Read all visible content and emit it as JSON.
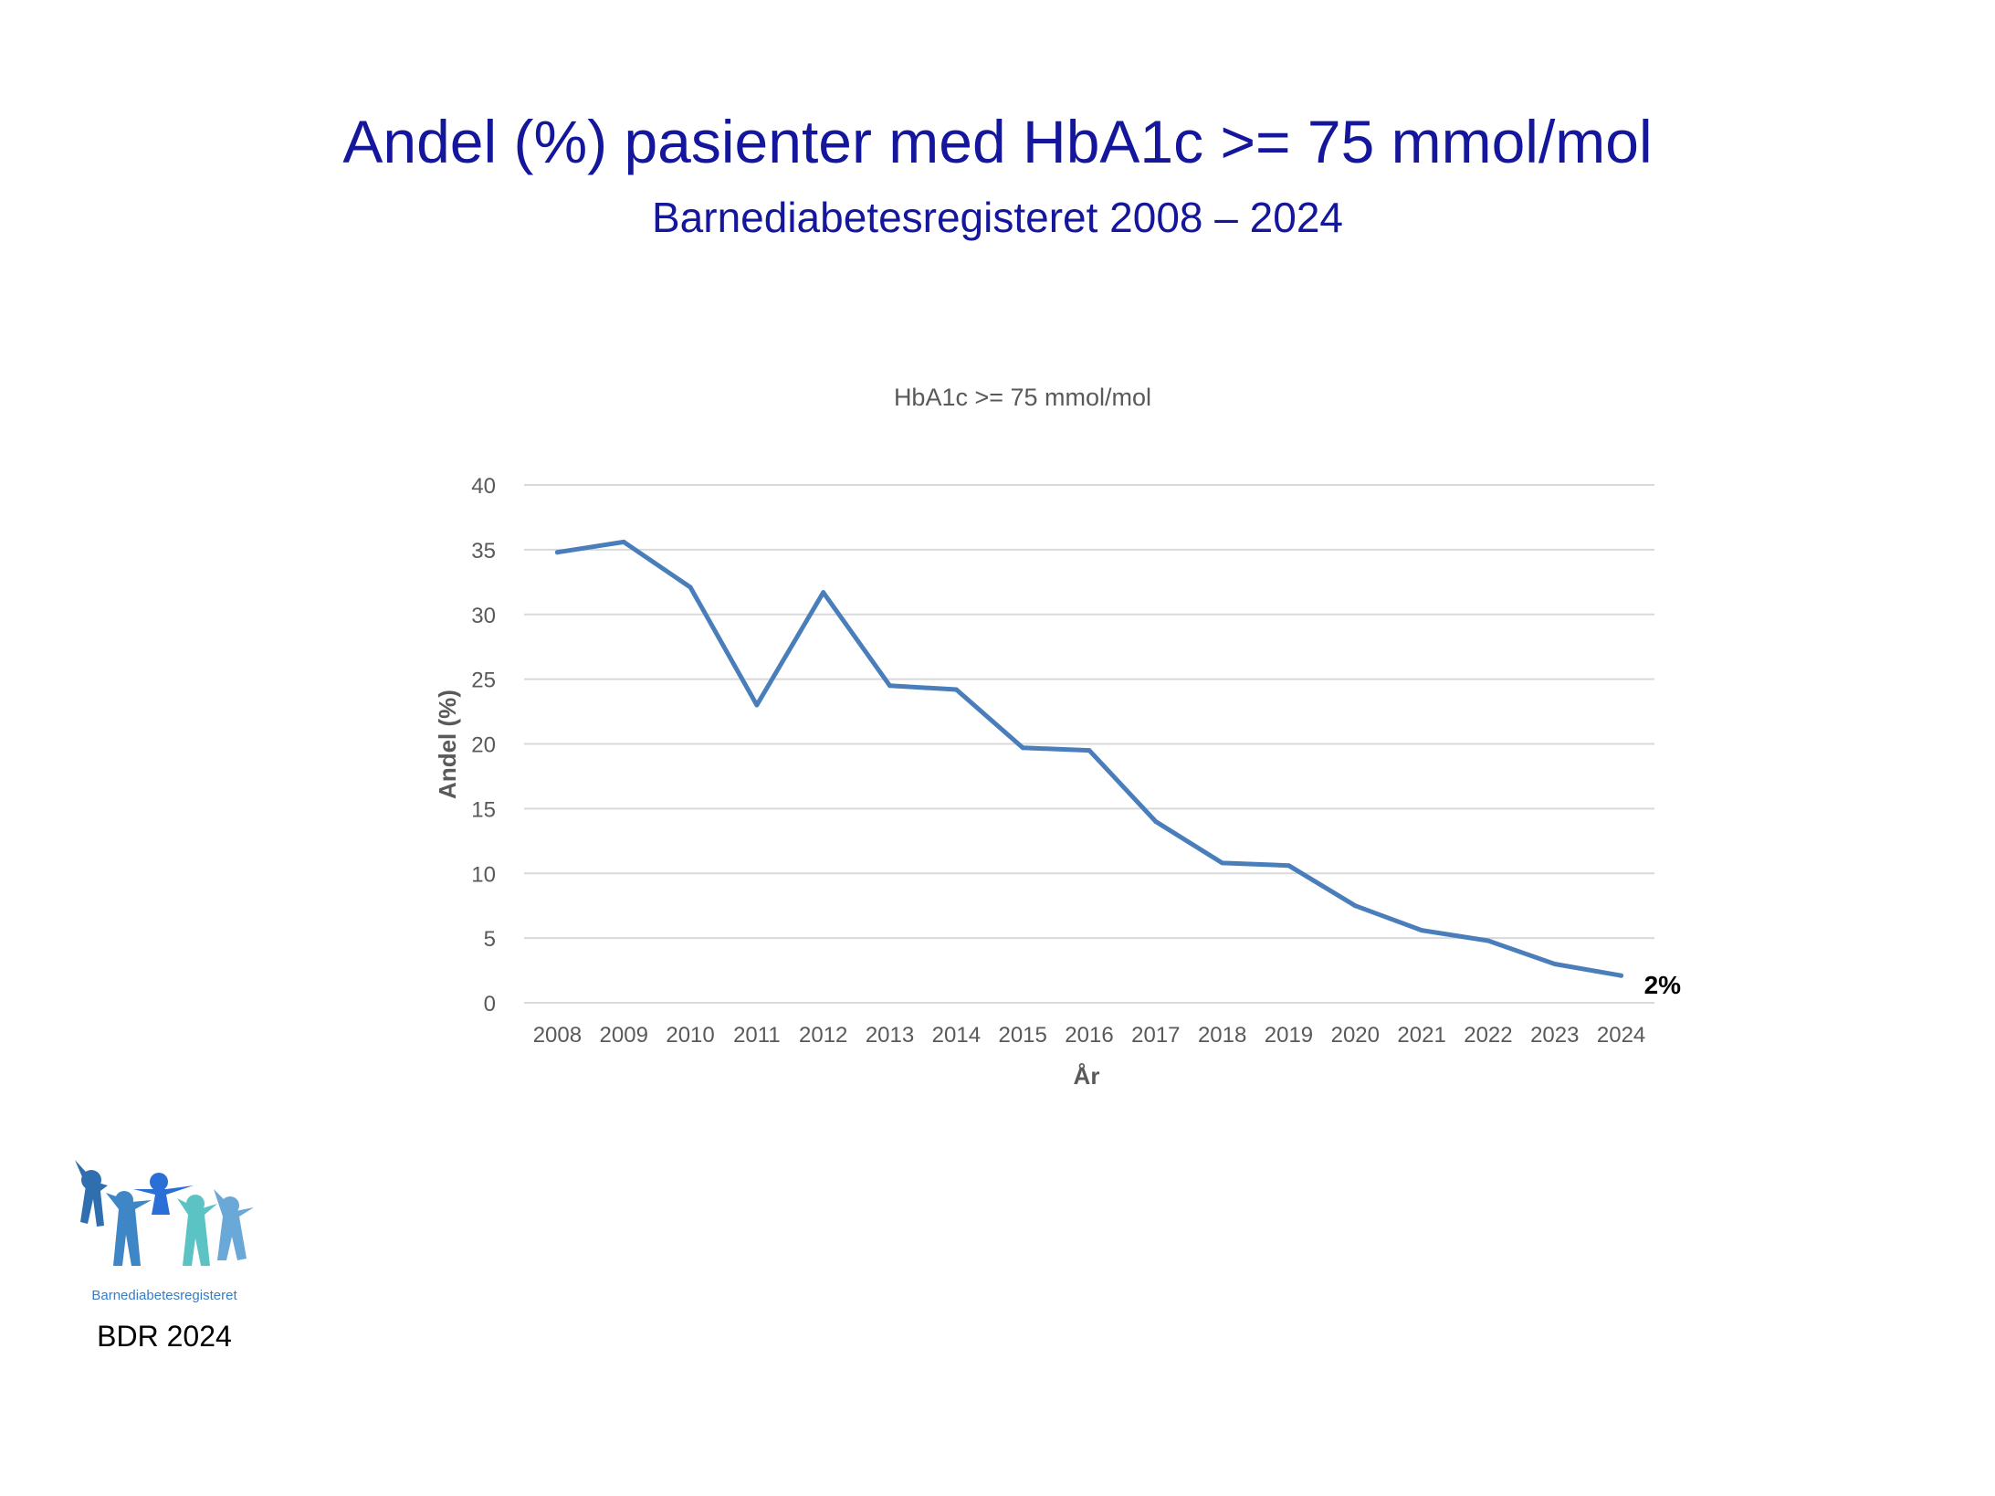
{
  "slide": {
    "title": "Andel (%) pasienter med HbA1c >= 75 mmol/mol",
    "subtitle": "Barnediabetesregisteret 2008 – 2024",
    "logo_text": "Barnediabetesregisteret",
    "footer": "BDR 2024"
  },
  "colors": {
    "title": "#14169c",
    "line": "#4a7ebb",
    "grid": "#d9d9d9",
    "axis_text": "#595959",
    "annotation": "#000000"
  },
  "chart_data": {
    "type": "line",
    "title": "HbA1c >= 75 mmol/mol",
    "xlabel": "År",
    "ylabel": "Andel (%)",
    "ylim": [
      0,
      40
    ],
    "yticks": [
      0,
      5,
      10,
      15,
      20,
      25,
      30,
      35,
      40
    ],
    "grid": true,
    "x": [
      "2008",
      "2009",
      "2010",
      "2011",
      "2012",
      "2013",
      "2014",
      "2015",
      "2016",
      "2017",
      "2018",
      "2019",
      "2020",
      "2021",
      "2022",
      "2023",
      "2024"
    ],
    "series": [
      {
        "values": [
          34.8,
          35.6,
          32.1,
          23.0,
          31.7,
          24.5,
          24.2,
          19.7,
          19.5,
          14.0,
          10.8,
          10.6,
          7.5,
          5.6,
          4.8,
          3.0,
          2.1
        ]
      }
    ],
    "annotations": [
      {
        "text": "2%",
        "x": "2024",
        "y": 2.1
      }
    ]
  }
}
